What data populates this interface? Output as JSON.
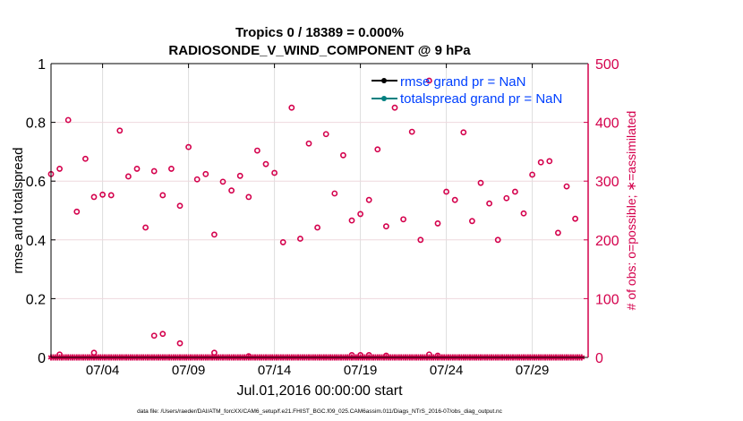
{
  "chart_data": {
    "type": "scatter",
    "title": "Tropics 0 / 18389 = 0.000%",
    "subtitle": "RADIOSONDE_V_WIND_COMPONENT @ 9 hPa",
    "xlabel": "Jul.01,2016 00:00:00 start",
    "ylabel_left": "rmse and totalspread",
    "ylabel_right": "# of obs: o=possible; ∗=assimilated",
    "footer": "data file: /Users/raeder/DAI/ATM_forcXX/CAM6_setup/f.e21.FHIST_BGC.f09_025.CAM6assim.011/Diags_NTrS_2016-07/obs_diag_output.nc",
    "xlim": [
      "2016-07-01T00",
      "2016-08-01T06"
    ],
    "ylim_left": [
      0,
      1
    ],
    "ylim_right": [
      0,
      500
    ],
    "x_ticks": [
      {
        "label": "07/04",
        "time": "2016-07-04T00"
      },
      {
        "label": "07/09",
        "time": "2016-07-09T00"
      },
      {
        "label": "07/14",
        "time": "2016-07-14T00"
      },
      {
        "label": "07/19",
        "time": "2016-07-19T00"
      },
      {
        "label": "07/24",
        "time": "2016-07-24T00"
      },
      {
        "label": "07/29",
        "time": "2016-07-29T00"
      }
    ],
    "y_ticks_left": [
      "0",
      "0.2",
      "0.4",
      "0.6",
      "0.8",
      "1"
    ],
    "y_ticks_right": [
      "0",
      "100",
      "200",
      "300",
      "400",
      "500"
    ],
    "grid": true,
    "legend_position": "top-right",
    "legend": [
      {
        "label": "rmse grand pr = NaN",
        "color": "#000000"
      },
      {
        "label": "totalspread grand pr = NaN",
        "color": "#008080"
      }
    ],
    "colors": {
      "obs": "#d4004c",
      "axis_left": "#000000",
      "legend_text": "#0040ff"
    },
    "series": [
      {
        "name": "rmse grand pr = NaN",
        "axis": "left",
        "values": []
      },
      {
        "name": "totalspread grand pr = NaN",
        "axis": "left",
        "values": []
      },
      {
        "name": "possible",
        "axis": "right",
        "marker": "o",
        "time_step_hours": 12,
        "values": [
          312,
          321,
          404,
          248,
          338,
          273,
          277,
          276,
          386,
          308,
          321,
          221,
          317,
          276,
          321,
          258,
          358,
          303,
          312,
          209,
          299,
          284,
          309,
          273,
          352,
          329,
          314,
          196,
          425,
          202,
          364,
          221,
          380,
          279,
          344,
          233,
          244,
          268,
          354,
          223,
          425,
          235,
          384,
          200,
          471,
          228,
          282,
          268,
          383,
          232,
          297,
          262,
          200,
          271,
          282,
          245,
          311,
          332,
          334,
          212,
          291,
          236
        ]
      },
      {
        "name": "possible (low)",
        "axis": "right",
        "marker": "o",
        "points": [
          {
            "time": "2016-07-01T12",
            "value": 5
          },
          {
            "time": "2016-07-03T12",
            "value": 8
          },
          {
            "time": "2016-07-07T00",
            "value": 37
          },
          {
            "time": "2016-07-07T12",
            "value": 40
          },
          {
            "time": "2016-07-08T12",
            "value": 24
          },
          {
            "time": "2016-07-10T12",
            "value": 8
          },
          {
            "time": "2016-07-12T12",
            "value": 2
          },
          {
            "time": "2016-07-18T12",
            "value": 4
          },
          {
            "time": "2016-07-19T00",
            "value": 4
          },
          {
            "time": "2016-07-19T12",
            "value": 4
          },
          {
            "time": "2016-07-20T12",
            "value": 3
          },
          {
            "time": "2016-07-23T00",
            "value": 5
          },
          {
            "time": "2016-07-23T12",
            "value": 3
          }
        ]
      },
      {
        "name": "assimilated",
        "axis": "right",
        "marker": "*",
        "time_step_hours": 12,
        "count": 62,
        "value": 0
      }
    ]
  }
}
